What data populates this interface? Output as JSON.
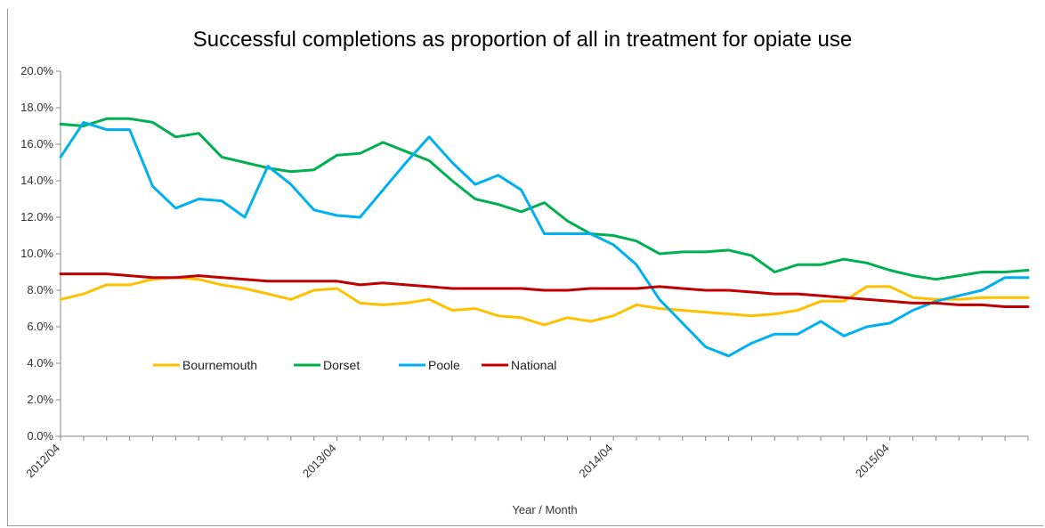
{
  "chart_data": {
    "type": "line",
    "title": "Successful completions as proportion of all in treatment for opiate use",
    "xlabel": "Year / Month",
    "ylabel": "",
    "ylim": [
      0,
      20
    ],
    "y_ticks": [
      "0.0%",
      "2.0%",
      "4.0%",
      "6.0%",
      "8.0%",
      "10.0%",
      "12.0%",
      "14.0%",
      "16.0%",
      "18.0%",
      "20.0%"
    ],
    "x_tick_labels": [
      {
        "index": 0,
        "label": "2012/04"
      },
      {
        "index": 12,
        "label": "2013/04"
      },
      {
        "index": 24,
        "label": "2014/04"
      },
      {
        "index": 36,
        "label": "2015/04"
      }
    ],
    "x": [
      "2012/04",
      "2012/05",
      "2012/06",
      "2012/07",
      "2012/08",
      "2012/09",
      "2012/10",
      "2012/11",
      "2012/12",
      "2013/01",
      "2013/02",
      "2013/03",
      "2013/04",
      "2013/05",
      "2013/06",
      "2013/07",
      "2013/08",
      "2013/09",
      "2013/10",
      "2013/11",
      "2013/12",
      "2014/01",
      "2014/02",
      "2014/03",
      "2014/04",
      "2014/05",
      "2014/06",
      "2014/07",
      "2014/08",
      "2014/09",
      "2014/10",
      "2014/11",
      "2014/12",
      "2015/01",
      "2015/02",
      "2015/03",
      "2015/04",
      "2015/05",
      "2015/06",
      "2015/07",
      "2015/08",
      "2015/09",
      "2015/10"
    ],
    "grid": false,
    "legend_position": "inside-lower-left",
    "series": [
      {
        "name": "Bournemouth",
        "color": "#FFC000",
        "values": [
          7.5,
          7.8,
          8.3,
          8.3,
          8.6,
          8.7,
          8.6,
          8.3,
          8.1,
          7.8,
          7.5,
          8.0,
          8.1,
          7.3,
          7.2,
          7.3,
          7.5,
          6.9,
          7.0,
          6.6,
          6.5,
          6.1,
          6.5,
          6.3,
          6.6,
          7.2,
          7.0,
          6.9,
          6.8,
          6.7,
          6.6,
          6.7,
          6.9,
          7.4,
          7.4,
          8.2,
          8.2,
          7.6,
          7.5,
          7.5,
          7.6,
          7.6,
          7.6
        ]
      },
      {
        "name": "Dorset",
        "color": "#00B050",
        "values": [
          17.1,
          17.0,
          17.4,
          17.4,
          17.2,
          16.4,
          16.6,
          15.3,
          15.0,
          14.7,
          14.5,
          14.6,
          15.4,
          15.5,
          16.1,
          15.6,
          15.1,
          14.0,
          13.0,
          12.7,
          12.3,
          12.8,
          11.8,
          11.1,
          11.0,
          10.7,
          10.0,
          10.1,
          10.1,
          10.2,
          9.9,
          9.0,
          9.4,
          9.4,
          9.7,
          9.5,
          9.1,
          8.8,
          8.6,
          8.8,
          9.0,
          9.0,
          9.1
        ]
      },
      {
        "name": "Poole",
        "color": "#00B0F0",
        "values": [
          15.3,
          17.2,
          16.8,
          16.8,
          13.7,
          12.5,
          13.0,
          12.9,
          12.0,
          14.8,
          13.8,
          12.4,
          12.1,
          12.0,
          13.5,
          15.0,
          16.4,
          15.0,
          13.8,
          14.3,
          13.5,
          11.1,
          11.1,
          11.1,
          10.5,
          9.4,
          7.5,
          6.2,
          4.9,
          4.4,
          5.1,
          5.6,
          5.6,
          6.3,
          5.5,
          6.0,
          6.2,
          6.9,
          7.4,
          7.7,
          8.0,
          8.7,
          8.7
        ]
      },
      {
        "name": "National",
        "color": "#C00000",
        "values": [
          8.9,
          8.9,
          8.9,
          8.8,
          8.7,
          8.7,
          8.8,
          8.7,
          8.6,
          8.5,
          8.5,
          8.5,
          8.5,
          8.3,
          8.4,
          8.3,
          8.2,
          8.1,
          8.1,
          8.1,
          8.1,
          8.0,
          8.0,
          8.1,
          8.1,
          8.1,
          8.2,
          8.1,
          8.0,
          8.0,
          7.9,
          7.8,
          7.8,
          7.7,
          7.6,
          7.5,
          7.4,
          7.3,
          7.3,
          7.2,
          7.2,
          7.1,
          7.1
        ]
      }
    ]
  }
}
